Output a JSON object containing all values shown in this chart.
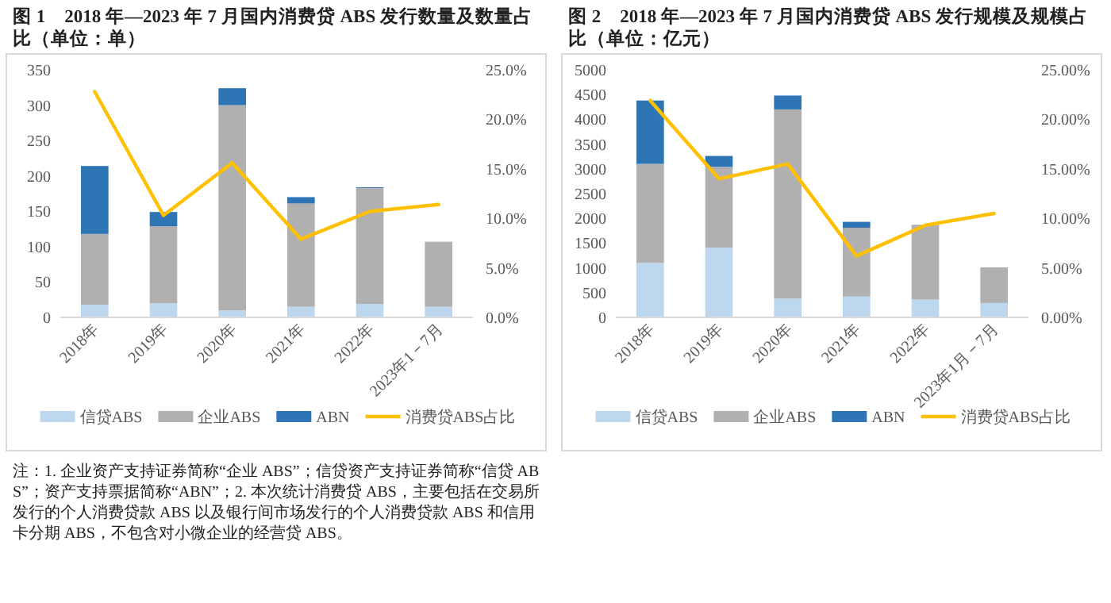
{
  "chart_data": [
    {
      "type": "bar",
      "title": "图 1　2018 年—2023 年 7 月国内消费贷 ABS 发行数量及数量占比（单位：单）",
      "categories": [
        "2018年",
        "2019年",
        "2020年",
        "2021年",
        "2022年",
        "2023年1－7月"
      ],
      "stacked": true,
      "series": [
        {
          "name": "信贷ABS",
          "color": "#bdd7ee",
          "values": [
            18,
            20,
            10,
            15,
            19,
            15
          ]
        },
        {
          "name": "企业ABS",
          "color": "#b0b0b0",
          "values": [
            100,
            109,
            290,
            146,
            164,
            92
          ]
        },
        {
          "name": "ABN",
          "color": "#2e75b6",
          "values": [
            96,
            20,
            24,
            9,
            1,
            0
          ]
        },
        {
          "name": "消费贷ABS占比",
          "color": "#ffc000",
          "type": "line",
          "axis": "y2",
          "values": [
            22.8,
            10.3,
            15.6,
            7.9,
            10.7,
            11.4
          ]
        }
      ],
      "ylim": [
        0,
        350
      ],
      "yticks": [
        0,
        50,
        100,
        150,
        200,
        250,
        300,
        350
      ],
      "y2lim": [
        0,
        25
      ],
      "y2ticks": [
        {
          "value": 0,
          "label": "0.0%"
        },
        {
          "value": 5,
          "label": "5.0%"
        },
        {
          "value": 10,
          "label": "10.0%"
        },
        {
          "value": 15,
          "label": "15.0%"
        },
        {
          "value": 20,
          "label": "20.0%"
        },
        {
          "value": 25,
          "label": "25.0%"
        }
      ],
      "legend": "bottom",
      "annotations": [
        "注：1. 企业资产支持证券简称“企业 ABS”；信贷资产支持证券简称“信贷 ABS”；资产支持票据简称“ABN”；2. 本次统计消费贷 ABS，主要包括在交易所发行的个人消费贷款 ABS 以及银行间市场发行的个人消费贷款 ABS 和信用卡分期 ABS，不包含对小微企业的经营贷 ABS。"
      ]
    },
    {
      "type": "bar",
      "title": "图 2　2018 年—2023 年 7 月国内消费贷 ABS 发行规模及规模占比（单位：亿元）",
      "categories": [
        "2018年",
        "2019年",
        "2020年",
        "2021年",
        "2022年",
        "2023年1月－7月"
      ],
      "stacked": true,
      "series": [
        {
          "name": "信贷ABS",
          "color": "#bdd7ee",
          "values": [
            1100,
            1410,
            380,
            420,
            360,
            290
          ]
        },
        {
          "name": "企业ABS",
          "color": "#b0b0b0",
          "values": [
            2000,
            1630,
            3820,
            1390,
            1510,
            720
          ]
        },
        {
          "name": "ABN",
          "color": "#2e75b6",
          "values": [
            1280,
            220,
            280,
            120,
            0,
            0
          ]
        },
        {
          "name": "消费贷ABS占比",
          "color": "#ffc000",
          "type": "line",
          "axis": "y2",
          "values": [
            21.9,
            14.0,
            15.5,
            6.2,
            9.3,
            10.5
          ]
        }
      ],
      "ylim": [
        0,
        5000
      ],
      "yticks": [
        0,
        500,
        1000,
        1500,
        2000,
        2500,
        3000,
        3500,
        4000,
        4500,
        5000
      ],
      "y2lim": [
        0,
        25
      ],
      "y2ticks": [
        {
          "value": 0,
          "label": "0.00%"
        },
        {
          "value": 5,
          "label": "5.00%"
        },
        {
          "value": 10,
          "label": "10.00%"
        },
        {
          "value": 15,
          "label": "15.00%"
        },
        {
          "value": 20,
          "label": "20.00%"
        },
        {
          "value": 25,
          "label": "25.00%"
        }
      ],
      "legend": "bottom"
    }
  ]
}
